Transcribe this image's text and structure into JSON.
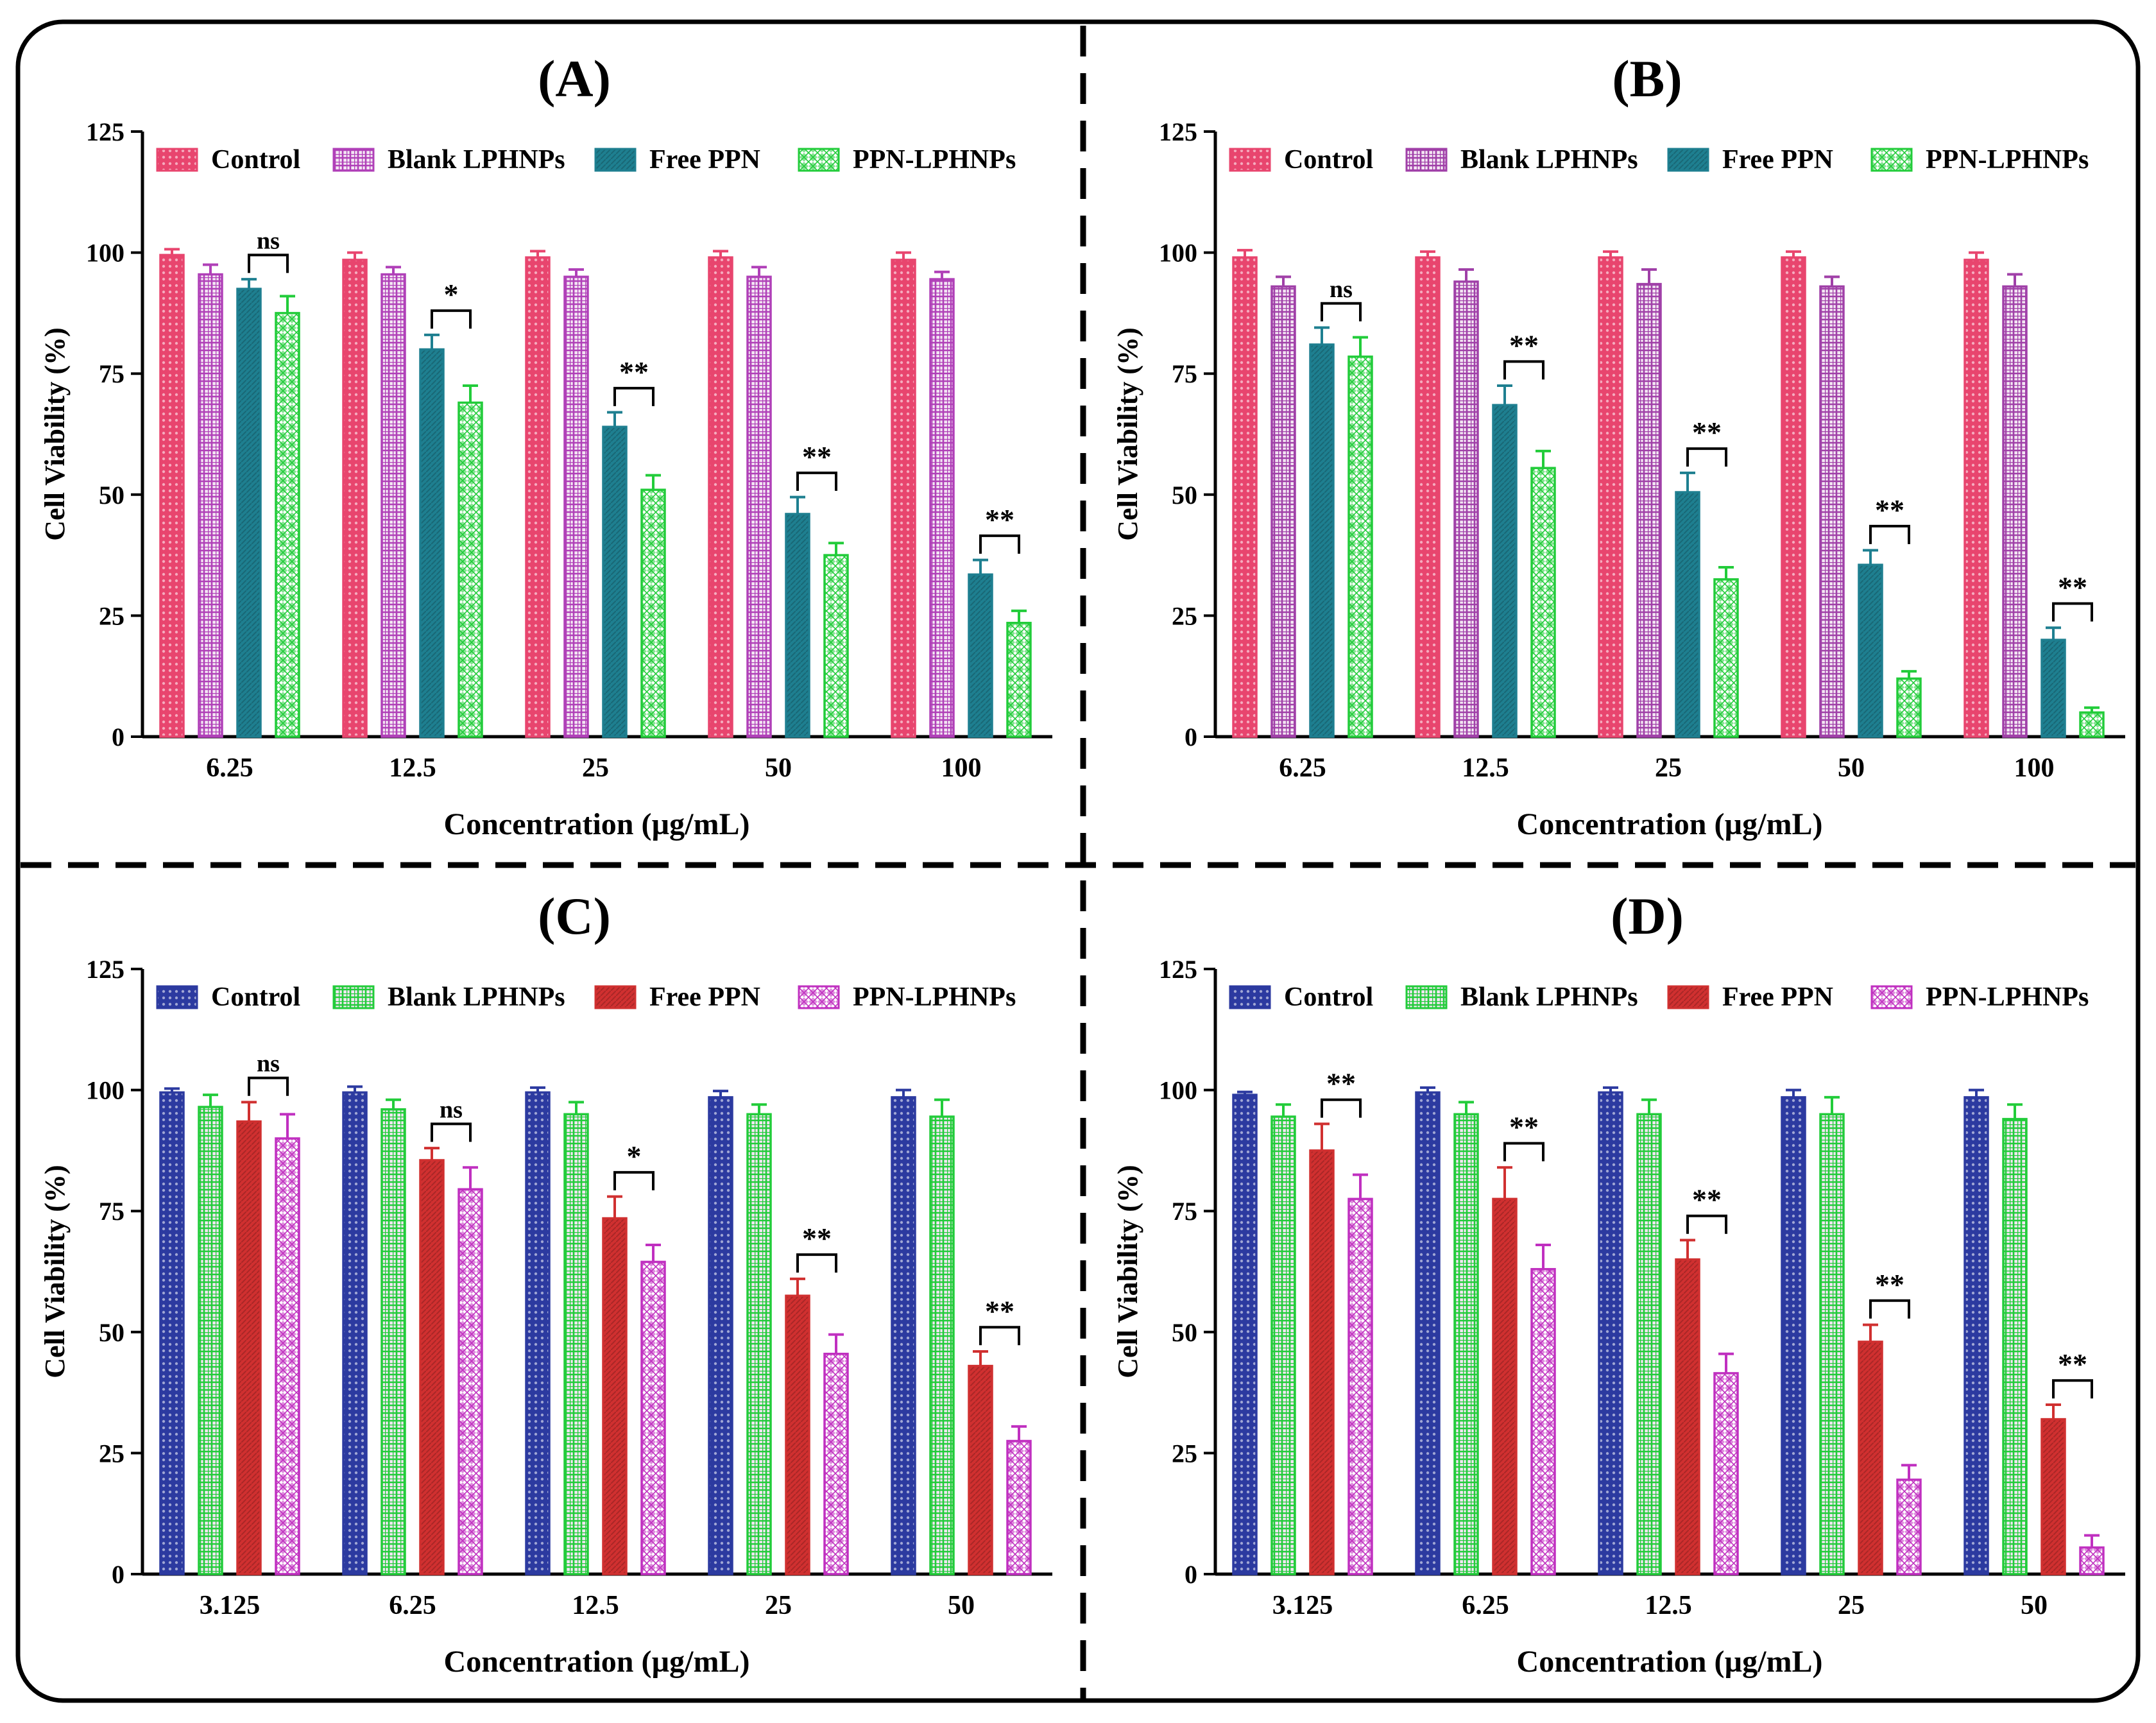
{
  "figure": {
    "panel_labels": [
      "(A)",
      "(B)",
      "(C)",
      "(D)"
    ]
  },
  "chart_data": [
    {
      "panel": "(A)",
      "type": "bar",
      "title": "(A)",
      "xlabel": "Concentration (µg/mL)",
      "ylabel": "Cell Viability (%)",
      "ylim": [
        0,
        125
      ],
      "yticks": [
        0,
        25,
        50,
        75,
        100,
        125
      ],
      "categories": [
        "6.25",
        "12.5",
        "25",
        "50",
        "100"
      ],
      "legend_position": "top",
      "series": [
        {
          "name": "Control",
          "color": "#e8456e",
          "pattern": "dots",
          "values": [
            99.5,
            98.5,
            99,
            99,
            98.5
          ],
          "errors": [
            1.2,
            1.5,
            1.3,
            1.3,
            1.5
          ]
        },
        {
          "name": "Blank LPHNPs",
          "color": "#b040b8",
          "pattern": "grid",
          "values": [
            95.5,
            95.5,
            95,
            95,
            94.5
          ],
          "errors": [
            2,
            1.5,
            1.5,
            2,
            1.5
          ]
        },
        {
          "name": "Free PPN",
          "color": "#1e7f90",
          "pattern": "solid",
          "values": [
            92.5,
            80,
            64,
            46,
            33.5
          ],
          "errors": [
            2,
            3,
            3,
            3.5,
            3
          ]
        },
        {
          "name": "PPN-LPHNPs",
          "color": "#22cc3a",
          "pattern": "zigzag",
          "values": [
            87.5,
            69,
            51,
            37.5,
            23.5
          ],
          "errors": [
            3.5,
            3.5,
            3,
            2.5,
            2.5
          ]
        }
      ],
      "significance": [
        {
          "category": "6.25",
          "label": "ns"
        },
        {
          "category": "12.5",
          "label": "*"
        },
        {
          "category": "25",
          "label": "**"
        },
        {
          "category": "50",
          "label": "**"
        },
        {
          "category": "100",
          "label": "**"
        }
      ]
    },
    {
      "panel": "(B)",
      "type": "bar",
      "title": "(B)",
      "xlabel": "Concentration (µg/mL)",
      "ylabel": "Cell Viability (%)",
      "ylim": [
        0,
        125
      ],
      "yticks": [
        0,
        25,
        50,
        75,
        100,
        125
      ],
      "categories": [
        "6.25",
        "12.5",
        "25",
        "50",
        "100"
      ],
      "legend_position": "top",
      "series": [
        {
          "name": "Control",
          "color": "#e8456e",
          "pattern": "dots",
          "values": [
            99,
            99,
            99,
            99,
            98.5
          ],
          "errors": [
            1.5,
            1.2,
            1.2,
            1.2,
            1.5
          ]
        },
        {
          "name": "Blank LPHNPs",
          "color": "#a040a8",
          "pattern": "grid",
          "values": [
            93,
            94,
            93.5,
            93,
            93
          ],
          "errors": [
            2,
            2.5,
            3,
            2,
            2.5
          ]
        },
        {
          "name": "Free PPN",
          "color": "#1e7f90",
          "pattern": "solid",
          "values": [
            81,
            68.5,
            50.5,
            35.5,
            20
          ],
          "errors": [
            3.5,
            4,
            4,
            3,
            2.5
          ]
        },
        {
          "name": "PPN-LPHNPs",
          "color": "#22cc3a",
          "pattern": "zigzag",
          "values": [
            78.5,
            55.5,
            32.5,
            12,
            5
          ],
          "errors": [
            4,
            3.5,
            2.5,
            1.5,
            1
          ]
        }
      ],
      "significance": [
        {
          "category": "6.25",
          "label": "ns"
        },
        {
          "category": "12.5",
          "label": "**"
        },
        {
          "category": "25",
          "label": "**"
        },
        {
          "category": "50",
          "label": "**"
        },
        {
          "category": "100",
          "label": "**"
        }
      ]
    },
    {
      "panel": "(C)",
      "type": "bar",
      "title": "(C)",
      "xlabel": "Concentration (µg/mL)",
      "ylabel": "Cell Viability (%)",
      "ylim": [
        0,
        125
      ],
      "yticks": [
        0,
        25,
        50,
        75,
        100,
        125
      ],
      "categories": [
        "3.125",
        "6.25",
        "12.5",
        "25",
        "50"
      ],
      "legend_position": "top",
      "series": [
        {
          "name": "Control",
          "color": "#2c3aa0",
          "pattern": "dots",
          "values": [
            99.5,
            99.5,
            99.5,
            98.5,
            98.5
          ],
          "errors": [
            0.8,
            1.2,
            1,
            1.3,
            1.5
          ]
        },
        {
          "name": "Blank LPHNPs",
          "color": "#22cc3a",
          "pattern": "grid",
          "values": [
            96.5,
            96,
            95,
            95,
            94.5
          ],
          "errors": [
            2.5,
            2,
            2.5,
            2,
            3.5
          ]
        },
        {
          "name": "Free PPN",
          "color": "#d03030",
          "pattern": "solid",
          "values": [
            93.5,
            85.5,
            73.5,
            57.5,
            43
          ],
          "errors": [
            4,
            2.5,
            4.5,
            3.5,
            3
          ]
        },
        {
          "name": "PPN-LPHNPs",
          "color": "#c030c0",
          "pattern": "zigzag",
          "values": [
            90,
            79.5,
            64.5,
            45.5,
            27.5
          ],
          "errors": [
            5,
            4.5,
            3.5,
            4,
            3
          ]
        }
      ],
      "significance": [
        {
          "category": "3.125",
          "label": "ns"
        },
        {
          "category": "6.25",
          "label": "ns"
        },
        {
          "category": "12.5",
          "label": "*"
        },
        {
          "category": "25",
          "label": "**"
        },
        {
          "category": "50",
          "label": "**"
        }
      ]
    },
    {
      "panel": "(D)",
      "type": "bar",
      "title": "(D)",
      "xlabel": "Concentration (µg/mL)",
      "ylabel": "Cell Viability (%)",
      "ylim": [
        0,
        125
      ],
      "yticks": [
        0,
        25,
        50,
        75,
        100,
        125
      ],
      "categories": [
        "3.125",
        "6.25",
        "12.5",
        "25",
        "50"
      ],
      "legend_position": "top",
      "series": [
        {
          "name": "Control",
          "color": "#2c3aa0",
          "pattern": "dots",
          "values": [
            99,
            99.5,
            99.5,
            98.5,
            98.5
          ],
          "errors": [
            0.6,
            1,
            1,
            1.5,
            1.5
          ]
        },
        {
          "name": "Blank LPHNPs",
          "color": "#22cc3a",
          "pattern": "grid",
          "values": [
            94.5,
            95,
            95,
            95,
            94
          ],
          "errors": [
            2.5,
            2.5,
            3,
            3.5,
            3
          ]
        },
        {
          "name": "Free PPN",
          "color": "#d03030",
          "pattern": "solid",
          "values": [
            87.5,
            77.5,
            65,
            48,
            32
          ],
          "errors": [
            5.5,
            6.5,
            4,
            3.5,
            3
          ]
        },
        {
          "name": "PPN-LPHNPs",
          "color": "#c030c0",
          "pattern": "zigzag",
          "values": [
            77.5,
            63,
            41.5,
            19.5,
            5.5
          ],
          "errors": [
            5,
            5,
            4,
            3,
            2.5
          ]
        }
      ],
      "significance": [
        {
          "category": "3.125",
          "label": "**"
        },
        {
          "category": "6.25",
          "label": "**"
        },
        {
          "category": "12.5",
          "label": "**"
        },
        {
          "category": "25",
          "label": "**"
        },
        {
          "category": "50",
          "label": "**"
        }
      ]
    }
  ]
}
